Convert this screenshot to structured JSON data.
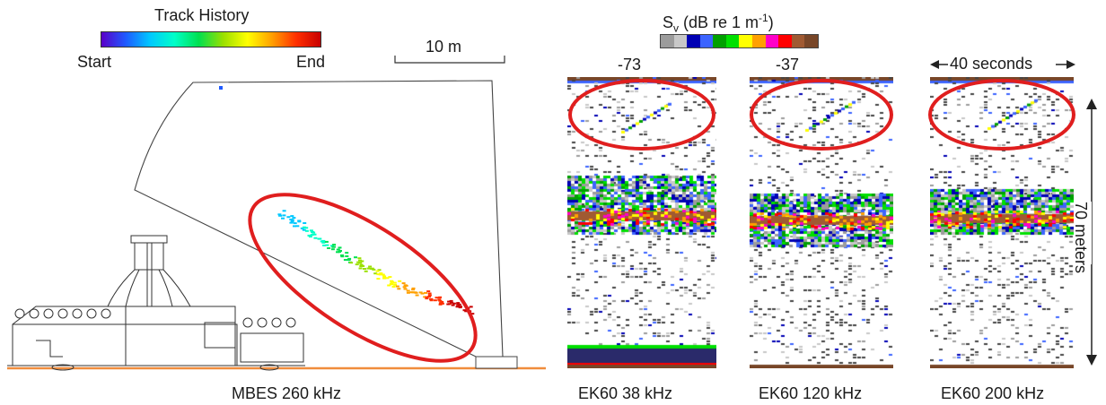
{
  "track_history": {
    "title": "Track History",
    "start_label": "Start",
    "end_label": "End",
    "gradient_colors": [
      "#5a00c8",
      "#1e5aff",
      "#00c8ff",
      "#00ffc8",
      "#00e050",
      "#9ae000",
      "#ffff00",
      "#ffa000",
      "#ff3000",
      "#c80000"
    ]
  },
  "scale_bar": {
    "label": "10 m"
  },
  "sv_colorbar": {
    "title_main": "S",
    "title_sub": "v",
    "title_unit_prefix": " (dB re 1 m",
    "title_unit_sup": "-1",
    "title_unit_suffix": ")",
    "min_label": "-73",
    "max_label": "-37",
    "colors": [
      "#9c9c9c",
      "#c8c8c8",
      "#0000b4",
      "#3c64ff",
      "#00a000",
      "#00e000",
      "#ffff00",
      "#ffa000",
      "#ff00c8",
      "#ff0000",
      "#a05a32",
      "#784628"
    ]
  },
  "time_scale": {
    "label": "40 seconds"
  },
  "depth_scale": {
    "label": "70 meters"
  },
  "panels": [
    {
      "id": "mbes",
      "caption": "MBES 260 kHz"
    },
    {
      "id": "ek38",
      "caption": "EK60 38 kHz"
    },
    {
      "id": "ek120",
      "caption": "EK60 120 kHz"
    },
    {
      "id": "ek200",
      "caption": "EK60 200 kHz"
    }
  ],
  "colors": {
    "highlight_ellipse": "#e01e1e",
    "seafloor_line": "#f08c3c",
    "outline": "#333333"
  }
}
